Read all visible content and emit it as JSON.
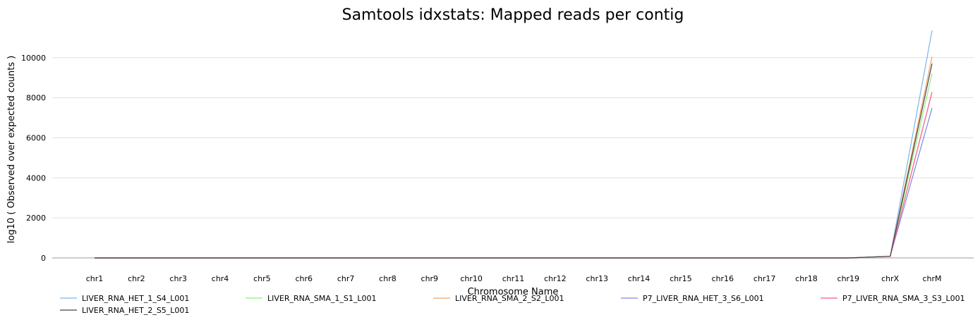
{
  "chart_data": {
    "type": "line",
    "title": "Samtools idxstats: Mapped reads per contig",
    "xlabel": "Chromosome Name",
    "ylabel": "log10 ( Observed over expected counts )",
    "categories": [
      "chr1",
      "chr2",
      "chr3",
      "chr4",
      "chr5",
      "chr6",
      "chr7",
      "chr8",
      "chr9",
      "chr10",
      "chr11",
      "chr12",
      "chr13",
      "chr14",
      "chr15",
      "chr16",
      "chr17",
      "chr18",
      "chr19",
      "chrX",
      "chrM"
    ],
    "ylim": [
      0,
      11400
    ],
    "yticks": [
      0,
      2000,
      4000,
      6000,
      8000,
      10000
    ],
    "grid": true,
    "legend_position": "bottom",
    "series": [
      {
        "name": "LIVER_RNA_HET_1_S4_L001",
        "color": "#7cb5ec",
        "values": [
          0,
          0,
          0,
          0,
          0,
          0,
          0,
          0,
          0,
          0,
          0,
          0,
          0,
          0,
          0,
          0,
          0,
          0,
          0,
          80,
          11350
        ]
      },
      {
        "name": "LIVER_RNA_SMA_1_S1_L001",
        "color": "#90ed7d",
        "values": [
          0,
          0,
          0,
          0,
          0,
          0,
          0,
          0,
          0,
          0,
          0,
          0,
          0,
          0,
          0,
          0,
          0,
          0,
          0,
          80,
          9200
        ]
      },
      {
        "name": "LIVER_RNA_SMA_2_S2_L001",
        "color": "#f7a35c",
        "values": [
          0,
          0,
          0,
          0,
          0,
          0,
          0,
          0,
          0,
          0,
          0,
          0,
          0,
          0,
          0,
          0,
          0,
          0,
          0,
          80,
          10050
        ]
      },
      {
        "name": "P7_LIVER_RNA_HET_3_S6_L001",
        "color": "#8085e9",
        "values": [
          0,
          0,
          0,
          0,
          0,
          0,
          0,
          0,
          0,
          0,
          0,
          0,
          0,
          0,
          0,
          0,
          0,
          0,
          0,
          80,
          7480
        ]
      },
      {
        "name": "P7_LIVER_RNA_SMA_3_S3_L001",
        "color": "#f15c80",
        "values": [
          0,
          0,
          0,
          0,
          0,
          0,
          0,
          0,
          0,
          0,
          0,
          0,
          0,
          0,
          0,
          0,
          0,
          0,
          0,
          80,
          8280
        ]
      },
      {
        "name": "LIVER_RNA_HET_2_S5_L001",
        "color": "#434348",
        "values": [
          0,
          0,
          0,
          0,
          0,
          0,
          0,
          0,
          0,
          0,
          0,
          0,
          0,
          0,
          0,
          0,
          0,
          0,
          0,
          80,
          9700
        ]
      }
    ]
  }
}
